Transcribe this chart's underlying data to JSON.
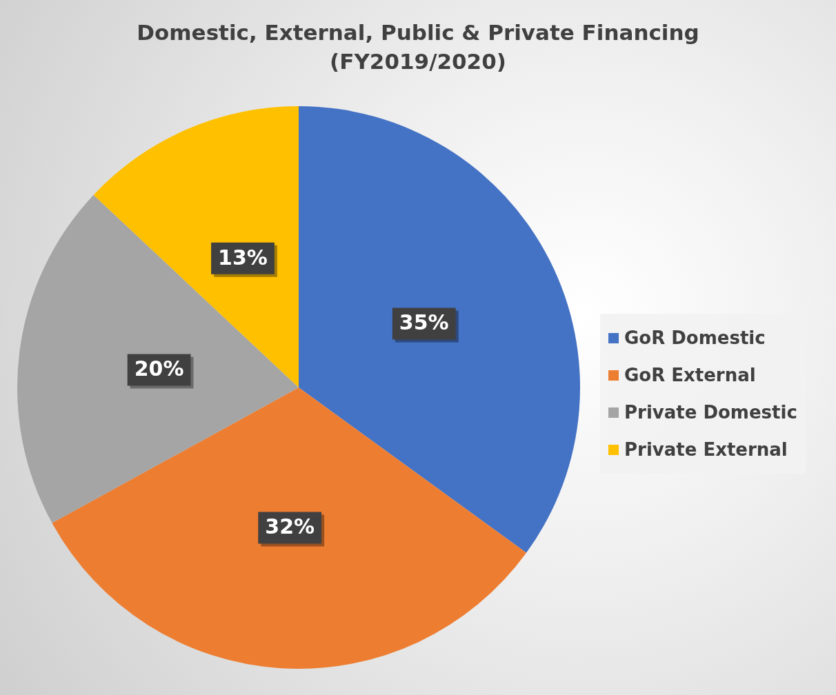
{
  "chart_data": {
    "type": "pie",
    "title": "Domestic, External, Public & Private Financing (FY2019/2020)",
    "categories": [
      "GoR Domestic",
      "GoR External",
      "Private Domestic",
      "Private External"
    ],
    "values": [
      35,
      32,
      20,
      13
    ],
    "colors": [
      "#4472c4",
      "#ed7d31",
      "#a5a5a5",
      "#ffc000"
    ],
    "value_labels": [
      "35%",
      "32%",
      "20%",
      "13%"
    ],
    "legend": "right"
  }
}
